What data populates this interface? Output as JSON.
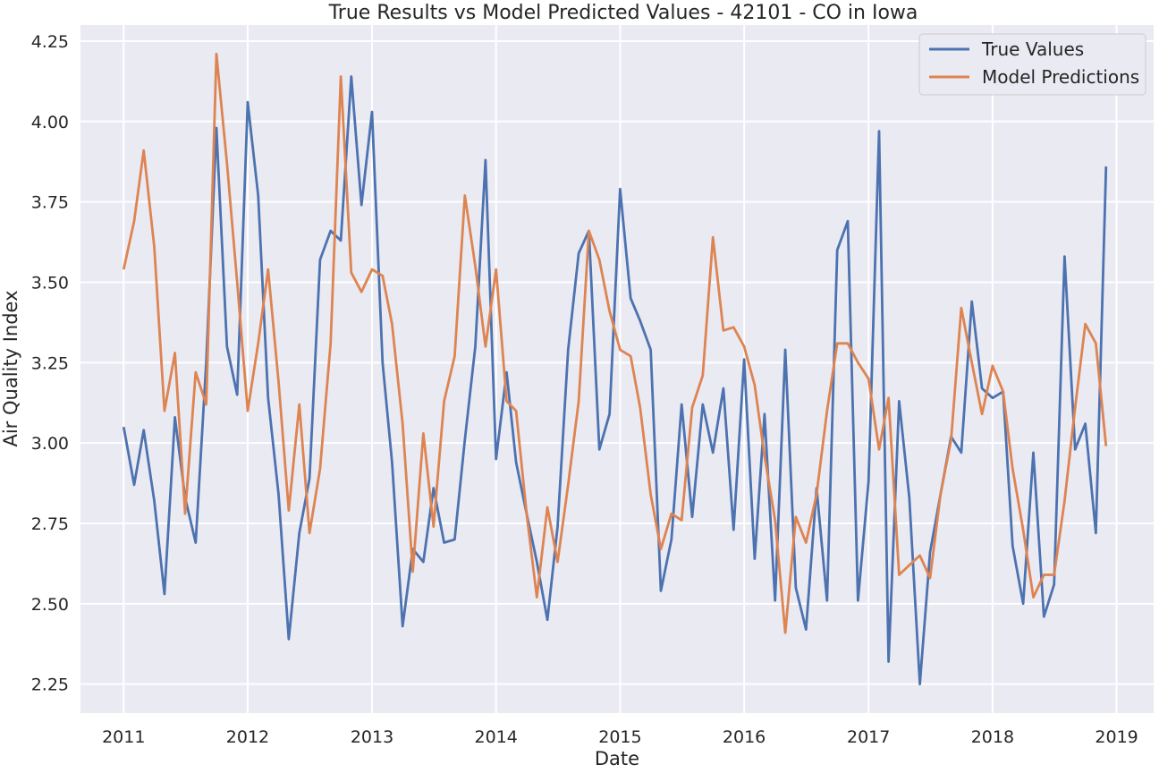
{
  "chart_data": {
    "type": "line",
    "title": "True Results vs Model Predicted Values - 42101 - CO in Iowa",
    "xlabel": "Date",
    "ylabel": "Air Quality Index",
    "xlim": [
      "2010-08-27",
      "2019-04-20"
    ],
    "ylim": [
      2.16,
      4.3
    ],
    "x_ticks": [
      "2011",
      "2012",
      "2013",
      "2014",
      "2015",
      "2016",
      "2017",
      "2018",
      "2019"
    ],
    "y_ticks": [
      "2.25",
      "2.50",
      "2.75",
      "3.00",
      "3.25",
      "3.50",
      "3.75",
      "4.00",
      "4.25"
    ],
    "grid": true,
    "legend_position": "top-right",
    "colors": {
      "background": "#eaeaf2",
      "grid": "#ffffff",
      "true_values": "#4c72b0",
      "model_predictions": "#dd8452"
    },
    "x": [
      "2011-01",
      "2011-02",
      "2011-03",
      "2011-04",
      "2011-05",
      "2011-06",
      "2011-07",
      "2011-08",
      "2011-09",
      "2011-10",
      "2011-11",
      "2011-12",
      "2012-01",
      "2012-02",
      "2012-03",
      "2012-04",
      "2012-05",
      "2012-06",
      "2012-07",
      "2012-08",
      "2012-09",
      "2012-10",
      "2012-11",
      "2012-12",
      "2013-01",
      "2013-02",
      "2013-03",
      "2013-04",
      "2013-05",
      "2013-06",
      "2013-07",
      "2013-08",
      "2013-09",
      "2013-10",
      "2013-11",
      "2013-12",
      "2014-01",
      "2014-02",
      "2014-03",
      "2014-04",
      "2014-05",
      "2014-06",
      "2014-07",
      "2014-08",
      "2014-09",
      "2014-10",
      "2014-11",
      "2014-12",
      "2015-01",
      "2015-02",
      "2015-03",
      "2015-04",
      "2015-05",
      "2015-06",
      "2015-07",
      "2015-08",
      "2015-09",
      "2015-10",
      "2015-11",
      "2015-12",
      "2016-01",
      "2016-02",
      "2016-03",
      "2016-04",
      "2016-05",
      "2016-06",
      "2016-07",
      "2016-08",
      "2016-09",
      "2016-10",
      "2016-11",
      "2016-12",
      "2017-01",
      "2017-02",
      "2017-03",
      "2017-04",
      "2017-05",
      "2017-06",
      "2017-07",
      "2017-08",
      "2017-09",
      "2017-10",
      "2017-11",
      "2017-12",
      "2018-01",
      "2018-02",
      "2018-03",
      "2018-04",
      "2018-05",
      "2018-06",
      "2018-07",
      "2018-08",
      "2018-09",
      "2018-10",
      "2018-11",
      "2018-12"
    ],
    "series": [
      {
        "name": "True Values",
        "values": [
          3.05,
          2.87,
          3.04,
          2.82,
          2.53,
          3.08,
          2.83,
          2.69,
          3.25,
          3.98,
          3.3,
          3.15,
          4.06,
          3.77,
          3.14,
          2.84,
          2.39,
          2.72,
          2.89,
          3.57,
          3.66,
          3.63,
          4.14,
          3.74,
          4.03,
          3.25,
          2.94,
          2.43,
          2.67,
          2.63,
          2.86,
          2.69,
          2.7,
          3.01,
          3.3,
          3.88,
          2.95,
          3.22,
          2.94,
          2.78,
          2.63,
          2.45,
          2.74,
          3.29,
          3.59,
          3.66,
          2.98,
          3.09,
          3.79,
          3.45,
          3.38,
          3.29,
          2.54,
          2.7,
          3.12,
          2.77,
          3.12,
          2.97,
          3.17,
          2.73,
          3.26,
          2.64,
          3.09,
          2.51,
          3.29,
          2.55,
          2.42,
          2.86,
          2.51,
          3.6,
          3.69,
          2.51,
          2.88,
          3.97,
          2.32,
          3.13,
          2.83,
          2.25,
          2.66,
          2.84,
          3.02,
          2.97,
          3.44,
          3.17,
          3.14,
          3.16,
          2.68,
          2.5,
          2.97,
          2.46,
          2.56,
          3.58,
          2.98,
          3.06,
          2.72,
          3.86
        ]
      },
      {
        "name": "Model Predictions",
        "values": [
          3.54,
          3.69,
          3.91,
          3.61,
          3.1,
          3.28,
          2.78,
          3.22,
          3.12,
          4.21,
          3.87,
          3.5,
          3.1,
          3.31,
          3.54,
          3.19,
          2.79,
          3.12,
          2.72,
          2.92,
          3.31,
          4.14,
          3.53,
          3.47,
          3.54,
          3.52,
          3.37,
          3.06,
          2.6,
          3.03,
          2.74,
          3.13,
          3.27,
          3.77,
          3.55,
          3.3,
          3.54,
          3.13,
          3.1,
          2.78,
          2.52,
          2.8,
          2.63,
          2.87,
          3.13,
          3.66,
          3.57,
          3.41,
          3.29,
          3.27,
          3.11,
          2.84,
          2.67,
          2.78,
          2.76,
          3.11,
          3.21,
          3.64,
          3.35,
          3.36,
          3.3,
          3.18,
          2.96,
          2.76,
          2.41,
          2.77,
          2.69,
          2.84,
          3.1,
          3.31,
          3.31,
          3.25,
          3.2,
          2.98,
          3.14,
          2.59,
          2.62,
          2.65,
          2.58,
          2.84,
          3.01,
          3.42,
          3.25,
          3.09,
          3.24,
          3.16,
          2.92,
          2.73,
          2.52,
          2.59,
          2.59,
          2.82,
          3.11,
          3.37,
          3.31,
          2.99
        ]
      }
    ]
  }
}
